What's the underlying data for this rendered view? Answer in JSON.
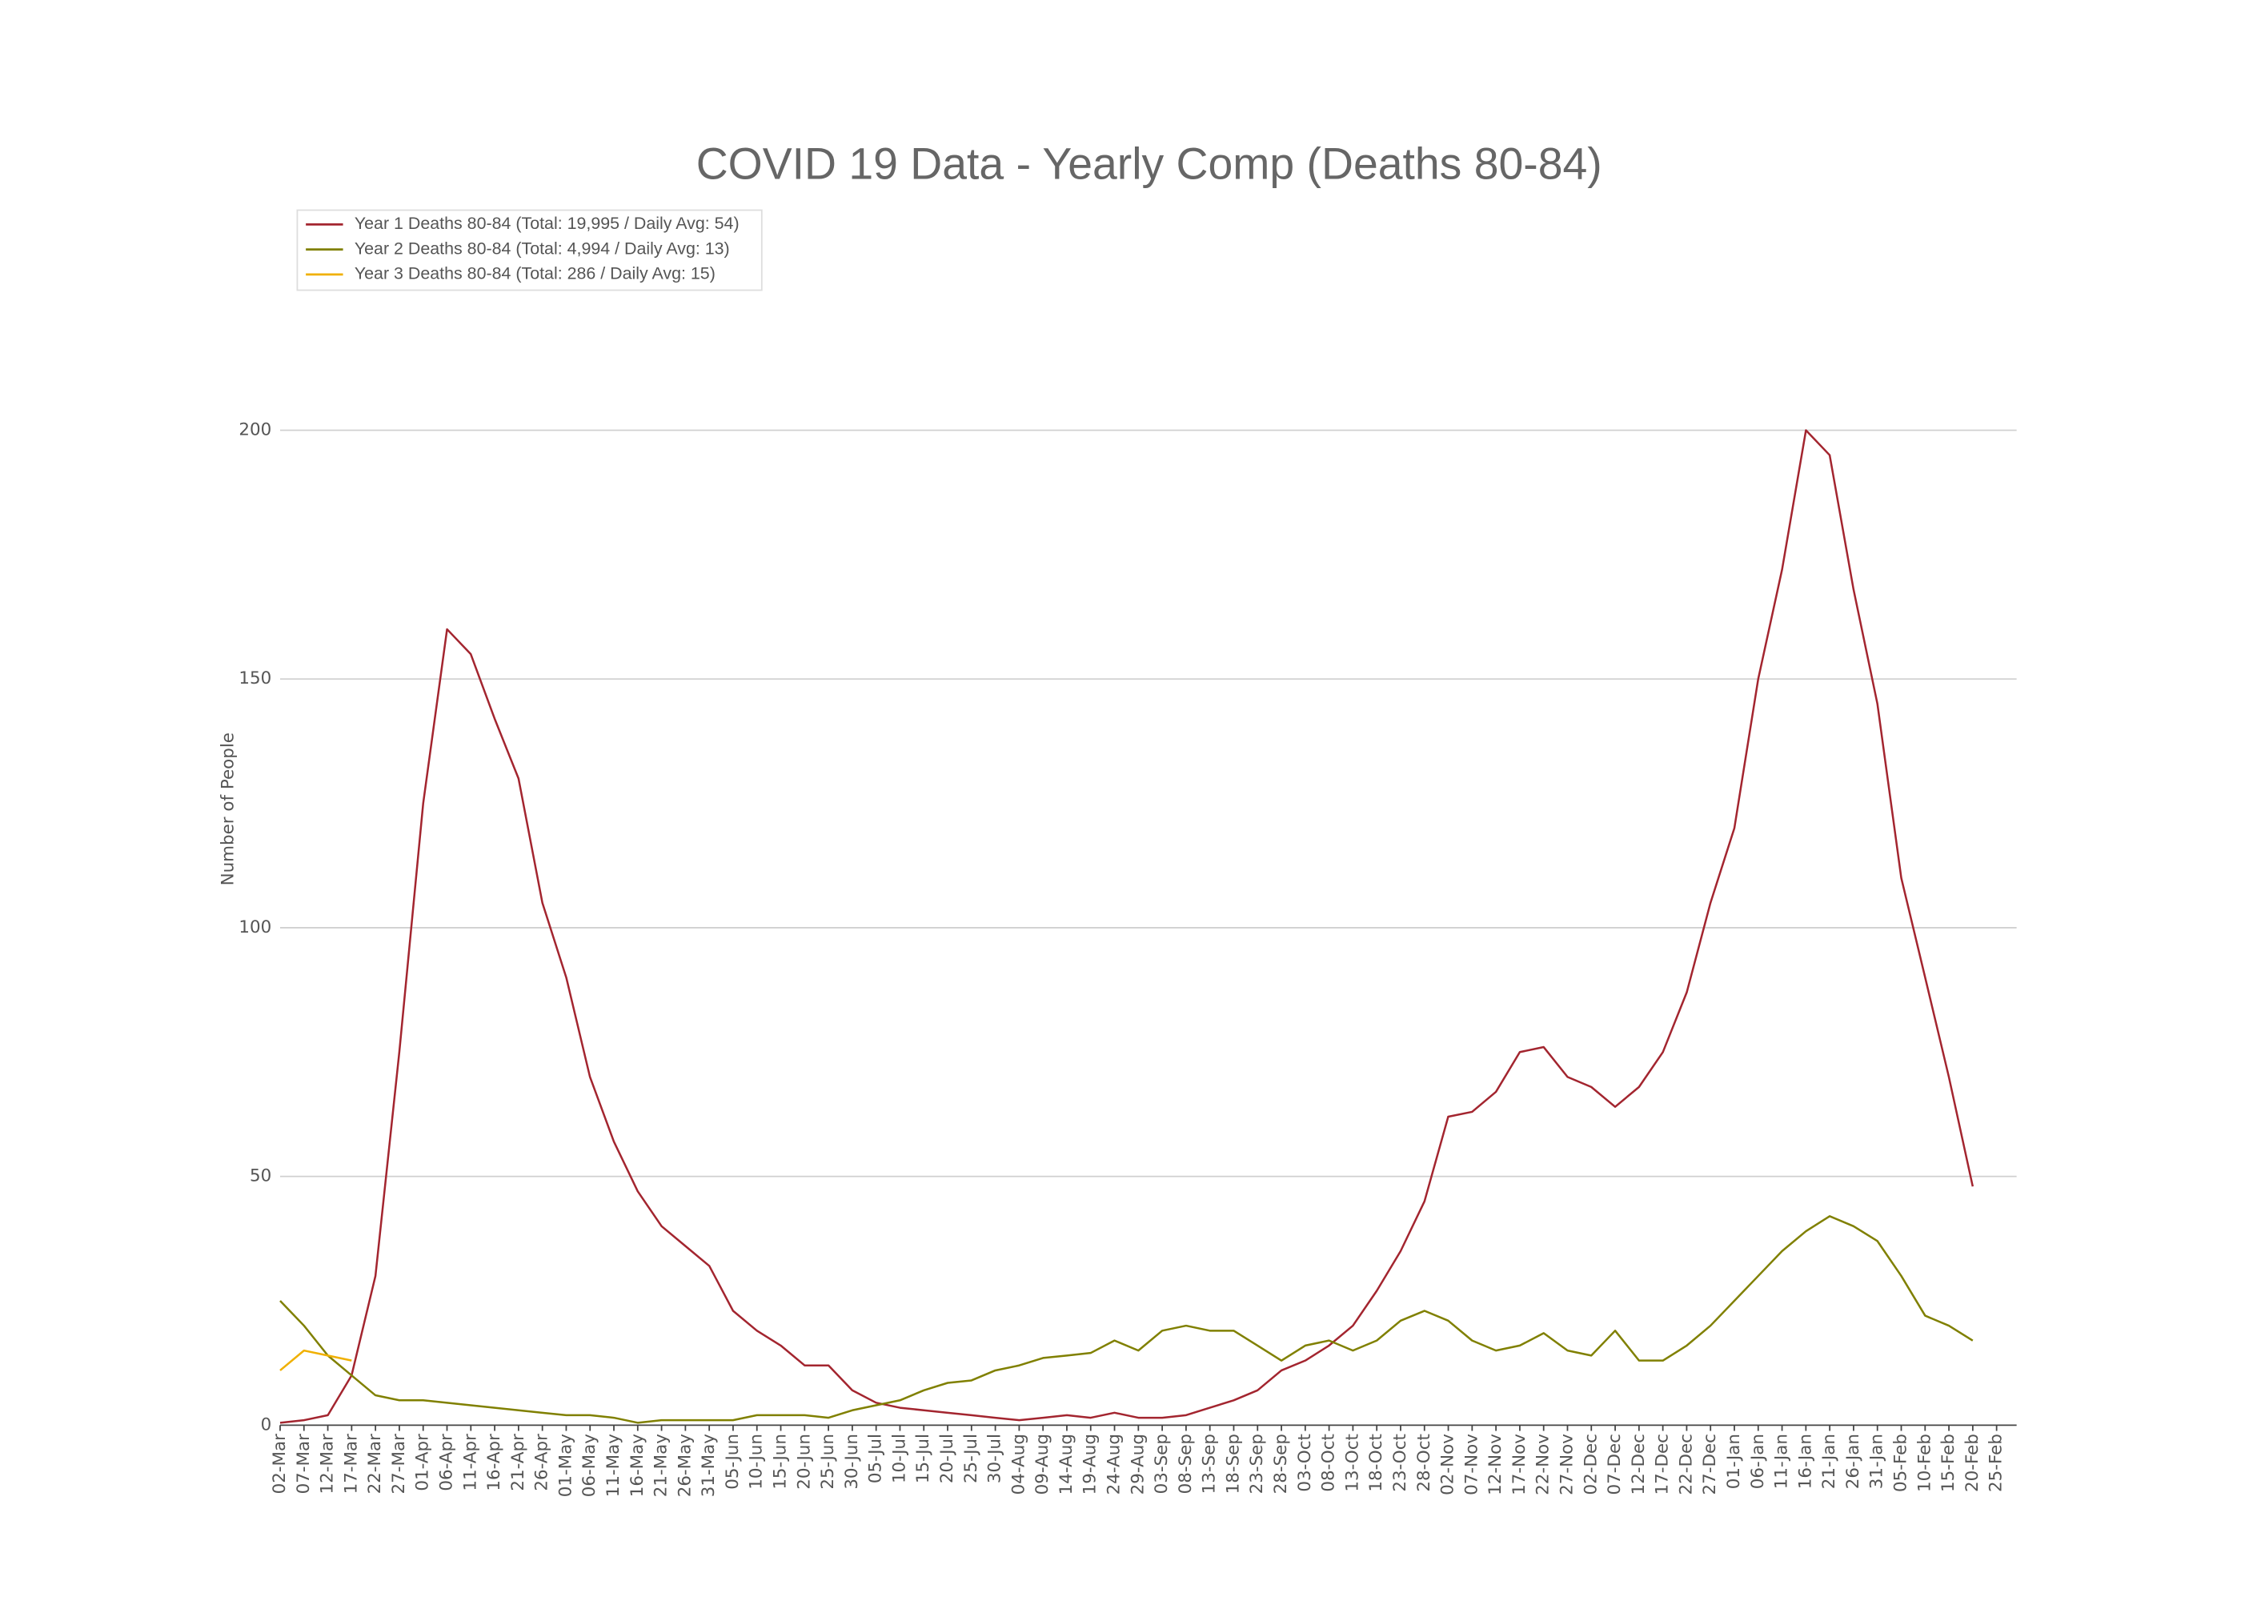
{
  "chart_data": {
    "type": "line",
    "title": "COVID 19 Data - Yearly Comp (Deaths 80-84)",
    "y_label": "Number of People",
    "legend": "top-left",
    "grid": true,
    "ylim": [
      0,
      237
    ],
    "yticks": [
      0,
      50,
      100,
      150,
      200
    ],
    "categories": [
      "02-Mar",
      "07-Mar",
      "12-Mar",
      "17-Mar",
      "22-Mar",
      "27-Mar",
      "01-Apr",
      "06-Apr",
      "11-Apr",
      "16-Apr",
      "21-Apr",
      "26-Apr",
      "01-May",
      "06-May",
      "11-May",
      "16-May",
      "21-May",
      "26-May",
      "31-May",
      "05-Jun",
      "10-Jun",
      "15-Jun",
      "20-Jun",
      "25-Jun",
      "30-Jun",
      "05-Jul",
      "10-Jul",
      "15-Jul",
      "20-Jul",
      "25-Jul",
      "30-Jul",
      "04-Aug",
      "09-Aug",
      "14-Aug",
      "19-Aug",
      "24-Aug",
      "29-Aug",
      "03-Sep",
      "08-Sep",
      "13-Sep",
      "18-Sep",
      "23-Sep",
      "28-Sep",
      "03-Oct",
      "08-Oct",
      "13-Oct",
      "18-Oct",
      "23-Oct",
      "28-Oct",
      "02-Nov",
      "07-Nov",
      "12-Nov",
      "17-Nov",
      "22-Nov",
      "27-Nov",
      "02-Dec",
      "07-Dec",
      "12-Dec",
      "17-Dec",
      "22-Dec",
      "27-Dec",
      "01-Jan",
      "06-Jan",
      "11-Jan",
      "16-Jan",
      "21-Jan",
      "26-Jan",
      "31-Jan",
      "05-Feb",
      "10-Feb",
      "15-Feb",
      "20-Feb",
      "25-Feb"
    ],
    "series": [
      {
        "name": "Year 1 Deaths 80-84 (Total: 19,995 / Daily Avg: 54)",
        "color": "#a3252f",
        "values": [
          0.5,
          1,
          2,
          10,
          30,
          75,
          125,
          160,
          155,
          142,
          130,
          105,
          90,
          70,
          57,
          47,
          40,
          36,
          32,
          23,
          19,
          16,
          12,
          12,
          7,
          4.5,
          3.5,
          3,
          2.5,
          2,
          1.5,
          1,
          1.5,
          2,
          1.5,
          2.5,
          1.5,
          1.5,
          2,
          3.5,
          5,
          7,
          11,
          13,
          16,
          20,
          27,
          35,
          45,
          62,
          63,
          67,
          75,
          76,
          70,
          68,
          64,
          68,
          75,
          87,
          105,
          120,
          150,
          172,
          200,
          195,
          168,
          145,
          110,
          90,
          70,
          48,
          null
        ]
      },
      {
        "name": "Year 2 Deaths 80-84 (Total: 4,994 / Daily Avg: 13)",
        "color": "#808000",
        "values": [
          25,
          20,
          14,
          10,
          6,
          5,
          5,
          4.5,
          4,
          3.5,
          3,
          2.5,
          2,
          2,
          1.5,
          0.5,
          1,
          1,
          1,
          1,
          2,
          2,
          2,
          1.5,
          3,
          4,
          5,
          7,
          8.5,
          9,
          11,
          12,
          13.5,
          14,
          14.5,
          17,
          15,
          19,
          20,
          19,
          19,
          16,
          13,
          16,
          17,
          15,
          17,
          21,
          23,
          21,
          17,
          15,
          16,
          18.5,
          15,
          14,
          19,
          13,
          13,
          16,
          20,
          25,
          30,
          35,
          39,
          42,
          40,
          37,
          30,
          22,
          20,
          17,
          null
        ]
      },
      {
        "name": "Year 3 Deaths 80-84 (Total: 286 / Daily Avg: 15)",
        "color": "#f0b000",
        "values": [
          11,
          15,
          14,
          13,
          null,
          null,
          null,
          null,
          null,
          null,
          null,
          null,
          null,
          null,
          null,
          null,
          null,
          null,
          null,
          null,
          null,
          null,
          null,
          null,
          null,
          null,
          null,
          null,
          null,
          null,
          null,
          null,
          null,
          null,
          null,
          null,
          null,
          null,
          null,
          null,
          null,
          null,
          null,
          null,
          null,
          null,
          null,
          null,
          null,
          null,
          null,
          null,
          null,
          null,
          null,
          null,
          null,
          null,
          null,
          null,
          null,
          null,
          null,
          null,
          null,
          null,
          null,
          null,
          null,
          null,
          null,
          null,
          null
        ]
      }
    ]
  }
}
